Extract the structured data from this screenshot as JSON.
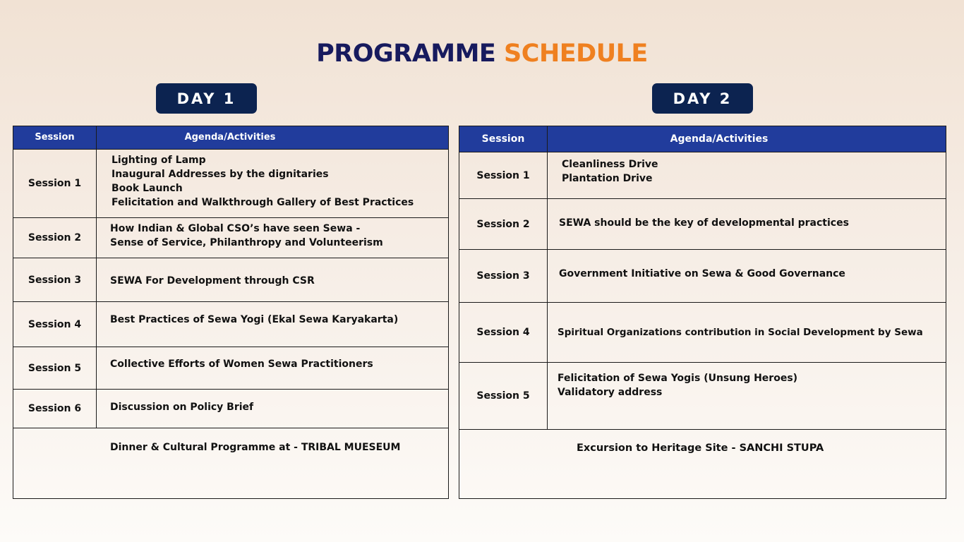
{
  "title": {
    "part1": "PROGRAMME",
    "part2": "SCHEDULE"
  },
  "day1": {
    "label": "DAY 1",
    "headers": {
      "session": "Session",
      "agenda": "Agenda/Activities"
    },
    "rows": [
      {
        "session": "Session 1",
        "lines": [
          "Lighting of Lamp",
          "Inaugural Addresses by the dignitaries",
          "Book Launch",
          "Felicitation and Walkthrough Gallery of Best Practices"
        ]
      },
      {
        "session": "Session 2",
        "lines": [
          "How Indian & Global CSO’s have seen Sewa -",
          "Sense of Service, Philanthropy and Volunteerism"
        ]
      },
      {
        "session": "Session 3",
        "lines": [
          "SEWA For Development through CSR"
        ]
      },
      {
        "session": "Session 4",
        "lines": [
          "Best Practices of Sewa Yogi (Ekal Sewa Karyakarta)"
        ]
      },
      {
        "session": "Session 5",
        "lines": [
          "Collective Efforts of Women Sewa Practitioners"
        ]
      },
      {
        "session": "Session 6",
        "lines": [
          "Discussion on Policy Brief"
        ]
      }
    ],
    "footer": "Dinner & Cultural Programme at - TRIBAL MUESEUM"
  },
  "day2": {
    "label": "DAY 2",
    "headers": {
      "session": "Session",
      "agenda": "Agenda/Activities"
    },
    "rows": [
      {
        "session": "Session 1",
        "lines": [
          "Cleanliness Drive",
          "Plantation Drive"
        ]
      },
      {
        "session": "Session 2",
        "lines": [
          "SEWA should be the key of developmental practices"
        ]
      },
      {
        "session": "Session 3",
        "lines": [
          "Government Initiative on Sewa & Good Governance"
        ]
      },
      {
        "session": "Session 4",
        "lines": [
          "Spiritual Organizations contribution in Social Development by Sewa"
        ]
      },
      {
        "session": "Session 5",
        "lines": [
          "Felicitation of Sewa Yogis (Unsung Heroes)",
          "Validatory address"
        ]
      }
    ],
    "footer": "Excursion to Heritage Site - SANCHI STUPA"
  },
  "colors": {
    "title_primary": "#171a5e",
    "title_accent": "#ef8020",
    "day_badge": "#0c2350",
    "table_header": "#213c9c"
  }
}
